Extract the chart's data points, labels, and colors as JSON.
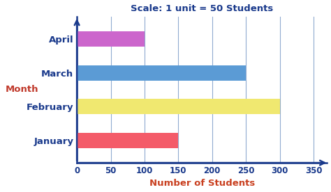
{
  "categories": [
    "January",
    "February",
    "March",
    "April"
  ],
  "values": [
    150,
    300,
    250,
    100
  ],
  "bar_colors": [
    "#f45b69",
    "#f0e870",
    "#5b9bd5",
    "#cc66cc"
  ],
  "xlim": [
    0,
    370
  ],
  "xticks": [
    0,
    50,
    100,
    150,
    200,
    250,
    300,
    350
  ],
  "title": "Scale: 1 unit = 50 Students",
  "title_color": "#1a3a8c",
  "xlabel": "Number of Students",
  "xlabel_color": "#c94020",
  "month_label": "Month",
  "month_label_color": "#c0392b",
  "tick_label_color": "#1a3a8c",
  "axis_color": "#1a3a8c",
  "grid_color": "#90aad0",
  "background_color": "#ffffff",
  "bar_height": 0.45
}
